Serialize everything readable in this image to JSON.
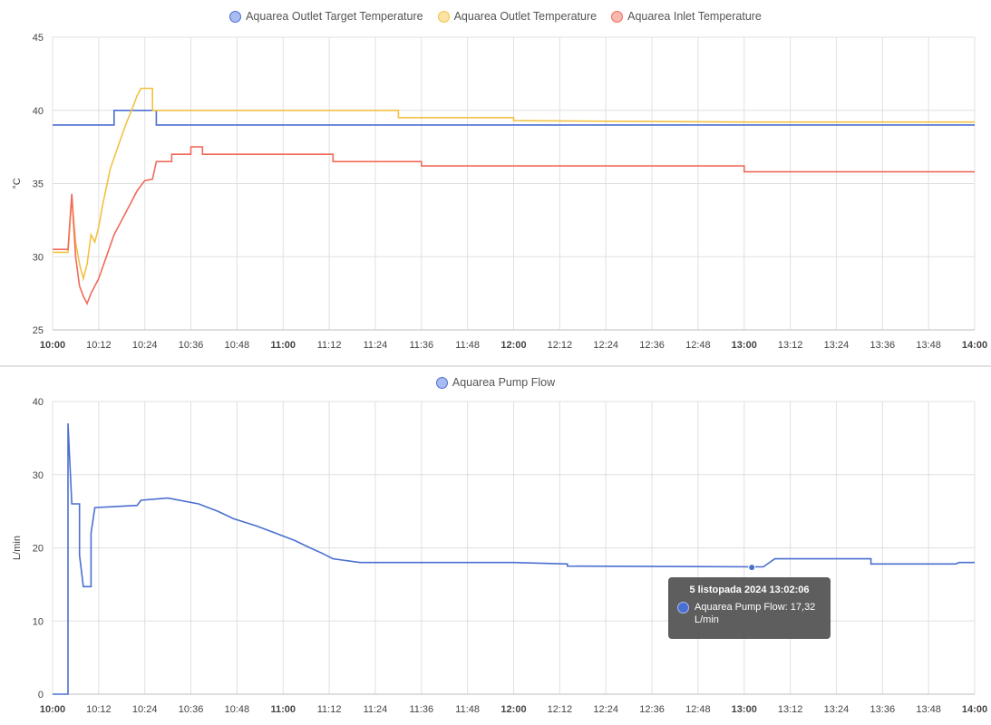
{
  "charts": [
    {
      "id": "temp",
      "legend": [
        {
          "label": "Aquarea Outlet Target Temperature",
          "color": "#4a6fd0",
          "fill": "#a9bcf0"
        },
        {
          "label": "Aquarea Outlet Temperature",
          "color": "#f2c244",
          "fill": "#fbe3a6"
        },
        {
          "label": "Aquarea Inlet Temperature",
          "color": "#f06b5c",
          "fill": "#f9b8ae"
        }
      ],
      "ylabel": "°C",
      "yticks": [
        "45",
        "40",
        "35",
        "30",
        "25"
      ],
      "xticks": [
        "10:00",
        "10:12",
        "10:24",
        "10:36",
        "10:48",
        "11:00",
        "11:12",
        "11:24",
        "11:36",
        "11:48",
        "12:00",
        "12:12",
        "12:24",
        "12:36",
        "12:48",
        "13:00",
        "13:12",
        "13:24",
        "13:36",
        "13:48",
        "14:00"
      ],
      "bold_xticks": [
        "10:00",
        "11:00",
        "12:00",
        "13:00",
        "14:00"
      ]
    },
    {
      "id": "flow",
      "legend": [
        {
          "label": "Aquarea Pump Flow",
          "color": "#4a6fd0",
          "fill": "#a9bcf0"
        }
      ],
      "ylabel": "L/min",
      "yticks": [
        "40",
        "30",
        "20",
        "10",
        "0"
      ],
      "xticks": [
        "10:00",
        "10:12",
        "10:24",
        "10:36",
        "10:48",
        "11:00",
        "11:12",
        "11:24",
        "11:36",
        "11:48",
        "12:00",
        "12:12",
        "12:24",
        "12:36",
        "12:48",
        "13:00",
        "13:12",
        "13:24",
        "13:36",
        "13:48",
        "14:00"
      ],
      "bold_xticks": [
        "10:00",
        "11:00",
        "12:00",
        "13:00",
        "14:00"
      ],
      "tooltip": {
        "title": "5 listopada 2024 13:02:06",
        "line1": "Aquarea Pump Flow: 17,32",
        "line2": "L/min"
      }
    }
  ],
  "chart_data": [
    {
      "type": "line",
      "x_unit": "time (HH:MM)",
      "ylabel": "°C",
      "ylim": [
        25,
        45
      ],
      "xlim": [
        "10:00",
        "14:00"
      ],
      "grid": true,
      "legend_position": "top-center",
      "series": [
        {
          "name": "Aquarea Outlet Target Temperature",
          "color": "#4a6fd0",
          "points": [
            [
              "10:00",
              39
            ],
            [
              "10:16",
              39
            ],
            [
              "10:16",
              40
            ],
            [
              "10:27",
              40
            ],
            [
              "10:27",
              39
            ],
            [
              "14:00",
              39
            ]
          ]
        },
        {
          "name": "Aquarea Outlet Temperature",
          "color": "#f2c244",
          "points": [
            [
              "10:00",
              30.3
            ],
            [
              "10:04",
              30.3
            ],
            [
              "10:05",
              34
            ],
            [
              "10:06",
              31
            ],
            [
              "10:07",
              29.5
            ],
            [
              "10:08",
              28.5
            ],
            [
              "10:09",
              29.5
            ],
            [
              "10:10",
              31.5
            ],
            [
              "10:11",
              31
            ],
            [
              "10:12",
              32
            ],
            [
              "10:13",
              33.5
            ],
            [
              "10:15",
              36
            ],
            [
              "10:17",
              37.5
            ],
            [
              "10:19",
              39
            ],
            [
              "10:21",
              40.3
            ],
            [
              "10:22",
              41
            ],
            [
              "10:23",
              41.5
            ],
            [
              "10:26",
              41.5
            ],
            [
              "10:26",
              40
            ],
            [
              "11:30",
              40
            ],
            [
              "11:30",
              39.5
            ],
            [
              "12:00",
              39.5
            ],
            [
              "12:00",
              39.3
            ],
            [
              "13:00",
              39.2
            ],
            [
              "14:00",
              39.2
            ]
          ]
        },
        {
          "name": "Aquarea Inlet Temperature",
          "color": "#f06b5c",
          "points": [
            [
              "10:00",
              30.5
            ],
            [
              "10:04",
              30.5
            ],
            [
              "10:05",
              34.3
            ],
            [
              "10:06",
              30
            ],
            [
              "10:07",
              28
            ],
            [
              "10:08",
              27.3
            ],
            [
              "10:09",
              26.8
            ],
            [
              "10:10",
              27.5
            ],
            [
              "10:12",
              28.5
            ],
            [
              "10:14",
              30
            ],
            [
              "10:16",
              31.5
            ],
            [
              "10:18",
              32.5
            ],
            [
              "10:20",
              33.5
            ],
            [
              "10:22",
              34.5
            ],
            [
              "10:24",
              35.2
            ],
            [
              "10:26",
              35.3
            ],
            [
              "10:27",
              36.5
            ],
            [
              "10:31",
              36.5
            ],
            [
              "10:31",
              37
            ],
            [
              "10:36",
              37
            ],
            [
              "10:36",
              37.5
            ],
            [
              "10:39",
              37.5
            ],
            [
              "10:39",
              37
            ],
            [
              "11:13",
              37
            ],
            [
              "11:13",
              36.5
            ],
            [
              "11:36",
              36.5
            ],
            [
              "11:36",
              36.2
            ],
            [
              "13:00",
              36.2
            ],
            [
              "13:00",
              35.8
            ],
            [
              "14:00",
              35.8
            ]
          ]
        }
      ]
    },
    {
      "type": "line",
      "x_unit": "time (HH:MM)",
      "ylabel": "L/min",
      "ylim": [
        0,
        40
      ],
      "xlim": [
        "10:00",
        "14:00"
      ],
      "grid": true,
      "legend_position": "top-center",
      "series": [
        {
          "name": "Aquarea Pump Flow",
          "color": "#4a6fd0",
          "points": [
            [
              "10:00",
              0
            ],
            [
              "10:04",
              0
            ],
            [
              "10:04",
              37
            ],
            [
              "10:05",
              26
            ],
            [
              "10:07",
              26
            ],
            [
              "10:07",
              19
            ],
            [
              "10:08",
              14.7
            ],
            [
              "10:10",
              14.7
            ],
            [
              "10:10",
              22
            ],
            [
              "10:11",
              25.5
            ],
            [
              "10:22",
              25.8
            ],
            [
              "10:23",
              26.5
            ],
            [
              "10:30",
              26.8
            ],
            [
              "10:38",
              26
            ],
            [
              "10:43",
              25
            ],
            [
              "10:47",
              24
            ],
            [
              "10:53",
              23
            ],
            [
              "10:58",
              22
            ],
            [
              "11:03",
              21
            ],
            [
              "11:07",
              20
            ],
            [
              "11:10",
              19.3
            ],
            [
              "11:13",
              18.5
            ],
            [
              "11:20",
              18
            ],
            [
              "12:00",
              18
            ],
            [
              "12:14",
              17.8
            ],
            [
              "12:14",
              17.5
            ],
            [
              "13:05",
              17.4
            ],
            [
              "13:08",
              18.5
            ],
            [
              "13:33",
              18.5
            ],
            [
              "13:33",
              17.8
            ],
            [
              "13:55",
              17.8
            ],
            [
              "13:56",
              18
            ],
            [
              "14:00",
              18
            ]
          ]
        }
      ],
      "highlight_point": {
        "x": "13:02",
        "y": 17.32
      }
    }
  ]
}
